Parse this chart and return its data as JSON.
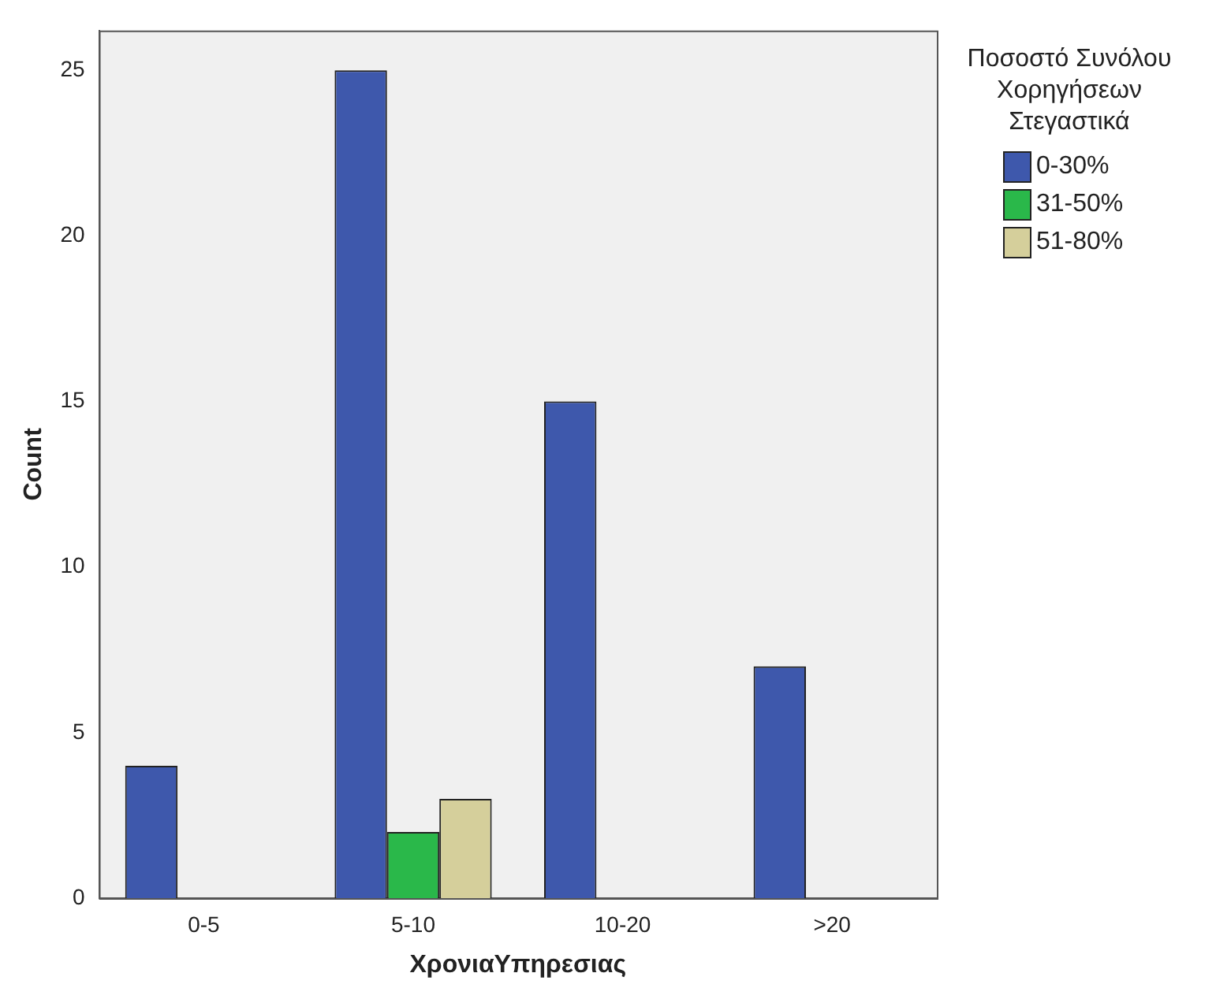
{
  "chart_data": {
    "type": "bar",
    "xlabel": "ΧρονιαΥπηρεσιας",
    "ylabel": "Count",
    "legend_title": "Ποσοστό Συνόλου Χορηγήσεων Στεγαστικά",
    "categories": [
      "0-5",
      "5-10",
      "10-20",
      ">20"
    ],
    "series": [
      {
        "name": "0-30%",
        "color": "#3e58ac",
        "values": [
          4,
          25,
          15,
          7
        ]
      },
      {
        "name": "31-50%",
        "color": "#2ab84a",
        "values": [
          null,
          2,
          null,
          null
        ]
      },
      {
        "name": "51-80%",
        "color": "#d5cf9b",
        "values": [
          null,
          3,
          null,
          null
        ]
      }
    ],
    "ylim": [
      0,
      26.2
    ],
    "yticks": [
      0,
      5,
      10,
      15,
      20,
      25
    ],
    "grid": false,
    "legend": "top right"
  }
}
